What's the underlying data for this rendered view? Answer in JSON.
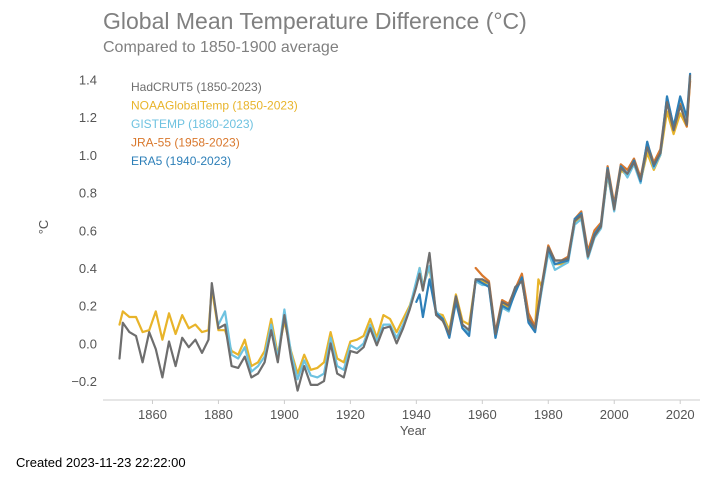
{
  "chart_data": {
    "type": "line",
    "title": "Global Mean Temperature Difference (°C)",
    "subtitle": "Compared to 1850-1900 average",
    "xlabel": "Year",
    "ylabel": "°C",
    "xlim": [
      1845,
      2026
    ],
    "ylim": [
      -0.3,
      1.45
    ],
    "x_ticks": [
      1860,
      1880,
      1900,
      1920,
      1940,
      1960,
      1980,
      2000,
      2020
    ],
    "y_ticks": [
      -0.2,
      0.0,
      0.2,
      0.4,
      0.6,
      0.8,
      1.0,
      1.2,
      1.4
    ],
    "y_tick_labels": [
      "−0.2",
      "0.0",
      "0.2",
      "0.4",
      "0.6",
      "0.8",
      "1.0",
      "1.2",
      "1.4"
    ],
    "grid": false,
    "legend_position": "top-left",
    "series": [
      {
        "name": "NOAAGlobalTemp (1850-2023)",
        "color": "#E8B42A",
        "x": [
          1850,
          1851,
          1853,
          1855,
          1857,
          1859,
          1861,
          1863,
          1865,
          1867,
          1869,
          1871,
          1873,
          1875,
          1877,
          1878,
          1880,
          1882,
          1884,
          1886,
          1888,
          1890,
          1892,
          1894,
          1896,
          1898,
          1900,
          1902,
          1904,
          1906,
          1908,
          1910,
          1912,
          1914,
          1916,
          1918,
          1920,
          1922,
          1924,
          1926,
          1928,
          1930,
          1932,
          1934,
          1936,
          1938,
          1940,
          1941,
          1942,
          1944,
          1946,
          1948,
          1950,
          1952,
          1954,
          1956,
          1958,
          1960,
          1962,
          1964,
          1966,
          1968,
          1970,
          1972,
          1974,
          1976,
          1977,
          1978,
          1980,
          1982,
          1984,
          1986,
          1988,
          1990,
          1992,
          1994,
          1996,
          1998,
          2000,
          2002,
          2004,
          2006,
          2008,
          2010,
          2012,
          2014,
          2016,
          2018,
          2020,
          2022,
          2023
        ],
        "y": [
          0.1,
          0.17,
          0.14,
          0.14,
          0.06,
          0.07,
          0.17,
          0.02,
          0.16,
          0.05,
          0.15,
          0.08,
          0.1,
          0.06,
          0.07,
          0.29,
          0.07,
          0.07,
          -0.04,
          -0.06,
          0.02,
          -0.12,
          -0.1,
          -0.04,
          0.13,
          -0.06,
          0.12,
          -0.04,
          -0.16,
          -0.06,
          -0.14,
          -0.13,
          -0.1,
          0.06,
          -0.08,
          -0.1,
          0.01,
          0.02,
          0.04,
          0.13,
          0.03,
          0.15,
          0.13,
          0.06,
          0.13,
          0.2,
          0.31,
          0.4,
          0.31,
          0.4,
          0.16,
          0.15,
          0.07,
          0.26,
          0.12,
          0.1,
          0.34,
          0.33,
          0.31,
          0.04,
          0.21,
          0.19,
          0.27,
          0.36,
          0.14,
          0.09,
          0.34,
          0.3,
          0.5,
          0.42,
          0.42,
          0.44,
          0.64,
          0.67,
          0.47,
          0.57,
          0.63,
          0.89,
          0.72,
          0.92,
          0.89,
          0.96,
          0.86,
          1.01,
          0.92,
          1.0,
          1.23,
          1.11,
          1.22,
          1.15,
          1.4
        ]
      },
      {
        "name": "GISTEMP (1880-2023)",
        "color": "#6EC2E0",
        "x": [
          1880,
          1882,
          1884,
          1886,
          1888,
          1890,
          1892,
          1894,
          1896,
          1898,
          1900,
          1902,
          1904,
          1906,
          1908,
          1910,
          1912,
          1914,
          1916,
          1918,
          1920,
          1922,
          1924,
          1926,
          1928,
          1930,
          1932,
          1934,
          1936,
          1938,
          1940,
          1941,
          1942,
          1944,
          1946,
          1948,
          1950,
          1952,
          1954,
          1956,
          1958,
          1960,
          1962,
          1964,
          1966,
          1968,
          1970,
          1972,
          1974,
          1976,
          1978,
          1980,
          1982,
          1984,
          1986,
          1988,
          1990,
          1992,
          1994,
          1996,
          1998,
          2000,
          2002,
          2004,
          2006,
          2008,
          2010,
          2012,
          2014,
          2016,
          2018,
          2020,
          2022,
          2023
        ],
        "y": [
          0.1,
          0.17,
          -0.06,
          -0.08,
          -0.02,
          -0.15,
          -0.12,
          -0.07,
          0.1,
          -0.08,
          0.18,
          -0.05,
          -0.19,
          -0.09,
          -0.17,
          -0.18,
          -0.16,
          0.03,
          -0.12,
          -0.14,
          -0.01,
          -0.03,
          0.0,
          0.1,
          0.01,
          0.1,
          0.1,
          0.03,
          0.1,
          0.19,
          0.33,
          0.4,
          0.3,
          0.41,
          0.17,
          0.13,
          0.05,
          0.24,
          0.08,
          0.06,
          0.33,
          0.31,
          0.31,
          0.03,
          0.19,
          0.17,
          0.28,
          0.34,
          0.12,
          0.07,
          0.28,
          0.48,
          0.39,
          0.41,
          0.43,
          0.63,
          0.66,
          0.45,
          0.56,
          0.61,
          0.9,
          0.7,
          0.94,
          0.88,
          0.95,
          0.85,
          1.05,
          0.93,
          1.0,
          1.3,
          1.14,
          1.29,
          1.18,
          1.41
        ]
      },
      {
        "name": "JRA-55 (1958-2023)",
        "color": "#D9782D",
        "x": [
          1958,
          1960,
          1962,
          1964,
          1966,
          1968,
          1970,
          1972,
          1974,
          1976,
          1978,
          1980,
          1982,
          1984,
          1986,
          1988,
          1990,
          1992,
          1994,
          1996,
          1998,
          2000,
          2002,
          2004,
          2006,
          2008,
          2010,
          2012,
          2014,
          2016,
          2018,
          2020,
          2022,
          2023
        ],
        "y": [
          0.4,
          0.36,
          0.33,
          0.06,
          0.23,
          0.21,
          0.29,
          0.37,
          0.16,
          0.09,
          0.31,
          0.52,
          0.44,
          0.44,
          0.46,
          0.66,
          0.7,
          0.49,
          0.6,
          0.64,
          0.94,
          0.74,
          0.95,
          0.92,
          0.98,
          0.88,
          1.06,
          0.96,
          1.03,
          1.3,
          1.15,
          1.27,
          1.15,
          1.39
        ]
      },
      {
        "name": "ERA5 (1940-2023)",
        "color": "#2D7FB8",
        "x": [
          1940,
          1941,
          1942,
          1944,
          1946,
          1948,
          1950,
          1952,
          1954,
          1956,
          1958,
          1960,
          1962,
          1964,
          1966,
          1968,
          1970,
          1972,
          1974,
          1976,
          1978,
          1980,
          1982,
          1984,
          1986,
          1988,
          1990,
          1992,
          1994,
          1996,
          1998,
          2000,
          2002,
          2004,
          2006,
          2008,
          2010,
          2012,
          2014,
          2016,
          2018,
          2020,
          2022,
          2023
        ],
        "y": [
          0.22,
          0.26,
          0.14,
          0.34,
          0.16,
          0.13,
          0.03,
          0.22,
          0.08,
          0.04,
          0.34,
          0.32,
          0.3,
          0.03,
          0.2,
          0.18,
          0.27,
          0.35,
          0.11,
          0.06,
          0.3,
          0.5,
          0.42,
          0.43,
          0.44,
          0.66,
          0.69,
          0.47,
          0.58,
          0.63,
          0.93,
          0.72,
          0.94,
          0.9,
          0.97,
          0.86,
          1.07,
          0.94,
          1.01,
          1.31,
          1.15,
          1.31,
          1.2,
          1.43
        ]
      },
      {
        "name": "HadCRUT5 (1850-2023)",
        "color": "#6E6E6E",
        "x": [
          1850,
          1851,
          1853,
          1855,
          1857,
          1859,
          1861,
          1863,
          1865,
          1867,
          1869,
          1871,
          1873,
          1875,
          1877,
          1878,
          1880,
          1882,
          1884,
          1886,
          1888,
          1890,
          1892,
          1894,
          1896,
          1898,
          1900,
          1902,
          1904,
          1906,
          1908,
          1910,
          1912,
          1914,
          1916,
          1918,
          1920,
          1922,
          1924,
          1926,
          1928,
          1930,
          1932,
          1934,
          1936,
          1938,
          1940,
          1941,
          1942,
          1944,
          1946,
          1948,
          1950,
          1952,
          1954,
          1956,
          1958,
          1960,
          1962,
          1964,
          1966,
          1968,
          1970,
          1972,
          1974,
          1976,
          1978,
          1980,
          1982,
          1984,
          1986,
          1988,
          1990,
          1992,
          1994,
          1996,
          1998,
          2000,
          2002,
          2004,
          2006,
          2008,
          2010,
          2012,
          2014,
          2016,
          2018,
          2020,
          2022,
          2023
        ],
        "y": [
          -0.08,
          0.11,
          0.06,
          0.04,
          -0.1,
          0.06,
          -0.03,
          -0.18,
          0.01,
          -0.12,
          0.03,
          -0.02,
          0.02,
          -0.05,
          0.02,
          0.32,
          0.08,
          0.1,
          -0.12,
          -0.13,
          -0.07,
          -0.18,
          -0.16,
          -0.1,
          0.07,
          -0.1,
          0.15,
          -0.08,
          -0.25,
          -0.12,
          -0.22,
          -0.22,
          -0.2,
          0.0,
          -0.16,
          -0.18,
          -0.04,
          -0.05,
          -0.02,
          0.08,
          -0.01,
          0.08,
          0.09,
          0.0,
          0.08,
          0.18,
          0.3,
          0.37,
          0.28,
          0.48,
          0.15,
          0.12,
          0.05,
          0.25,
          0.1,
          0.07,
          0.34,
          0.34,
          0.32,
          0.05,
          0.22,
          0.2,
          0.3,
          0.33,
          0.13,
          0.08,
          0.3,
          0.51,
          0.44,
          0.44,
          0.45,
          0.65,
          0.68,
          0.46,
          0.57,
          0.62,
          0.92,
          0.71,
          0.93,
          0.9,
          0.96,
          0.87,
          1.04,
          0.95,
          1.01,
          1.28,
          1.13,
          1.26,
          1.16,
          1.42
        ]
      }
    ]
  },
  "legend": {
    "entries": [
      {
        "label": "HadCRUT5 (1850-2023)",
        "color": "#6E6E6E"
      },
      {
        "label": "NOAAGlobalTemp (1850-2023)",
        "color": "#E8B42A"
      },
      {
        "label": "GISTEMP (1880-2023)",
        "color": "#6EC2E0"
      },
      {
        "label": "JRA-55 (1958-2023)",
        "color": "#D9782D"
      },
      {
        "label": "ERA5 (1940-2023)",
        "color": "#2D7FB8"
      }
    ]
  },
  "footer": {
    "created": "Created 2023-11-23 22:22:00"
  }
}
